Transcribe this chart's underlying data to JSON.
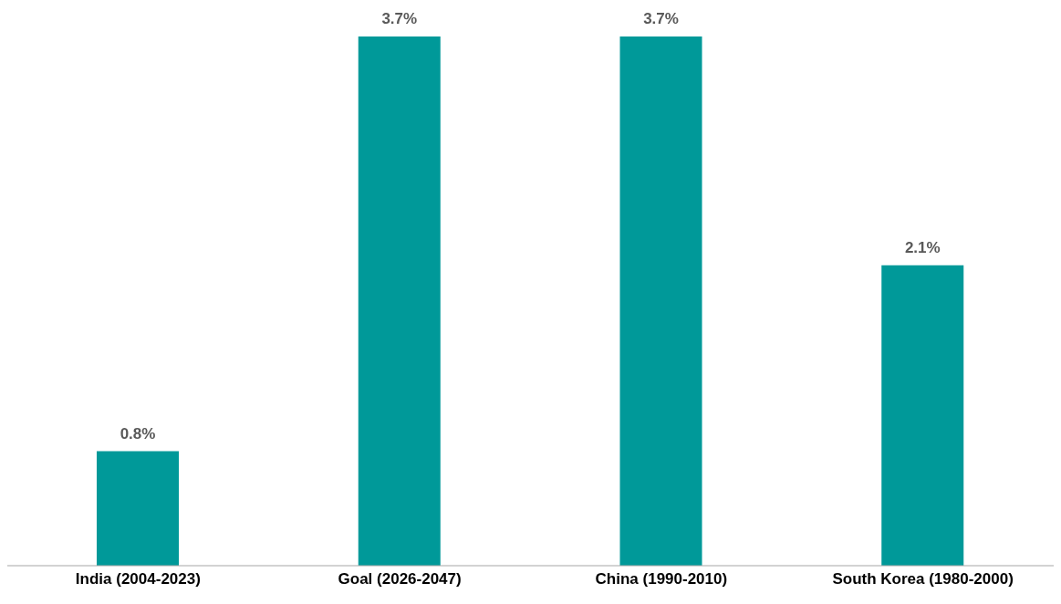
{
  "chart_data": {
    "type": "bar",
    "categories": [
      "India (2004-2023)",
      "Goal (2026-2047)",
      "China (1990-2010)",
      "South Korea (1980-2000)"
    ],
    "values": [
      0.8,
      3.7,
      3.7,
      2.1
    ],
    "color": "#009999",
    "value_labels": [
      "0.8%",
      "3.7%",
      "3.7%",
      "2.1%"
    ]
  }
}
